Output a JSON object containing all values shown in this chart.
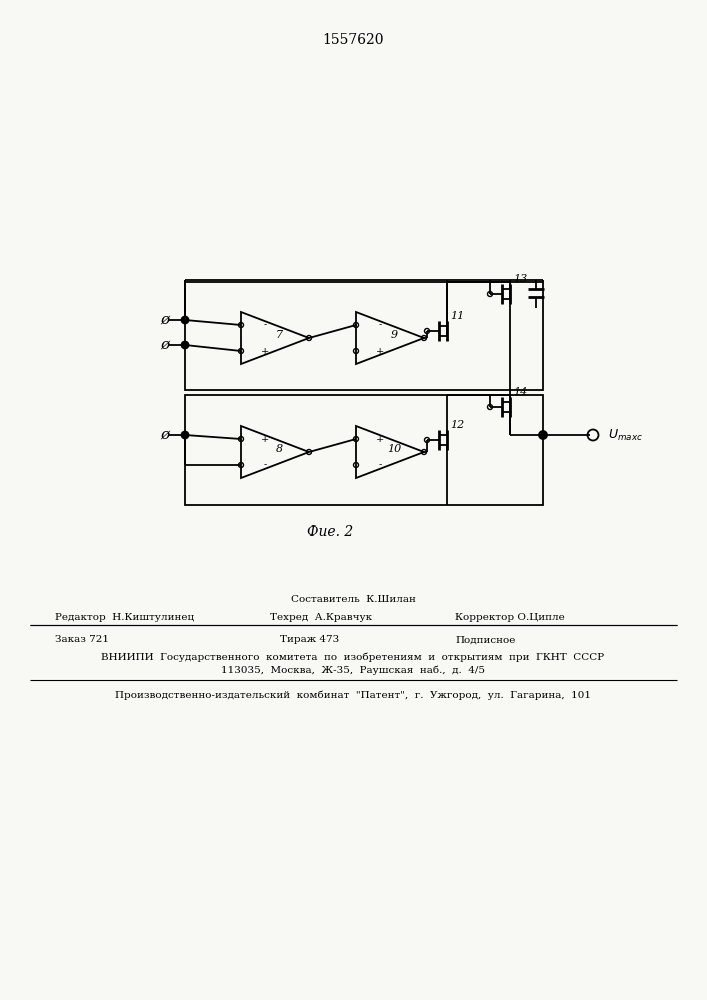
{
  "title": "1557620",
  "fig_caption": "Фие. 2",
  "bg": "#f8f8f5",
  "footer": {
    "composer": "Составитель  К.Шилан",
    "editor": "Редактор  Н.Киштулинец",
    "techred": "Техред  А.Кравчук",
    "corrector": "Корректор О.Ципле",
    "zakaz": "Заказ 721",
    "tirazh": "Тираж 473",
    "podpisnoe": "Подписное",
    "vniip1": "ВНИИПИ  Государственного  комитета  по  изобретениям  и  открытиям  при  ГКНТ  СССР",
    "vniip2": "113035,  Москва,  Ж-35,  Раушская  наб.,  д.  4/5",
    "patent": "Производственно-издательский  комбинат  \"Патент\",  г.  Ужгород,  ул.  Гагарина,  101"
  }
}
